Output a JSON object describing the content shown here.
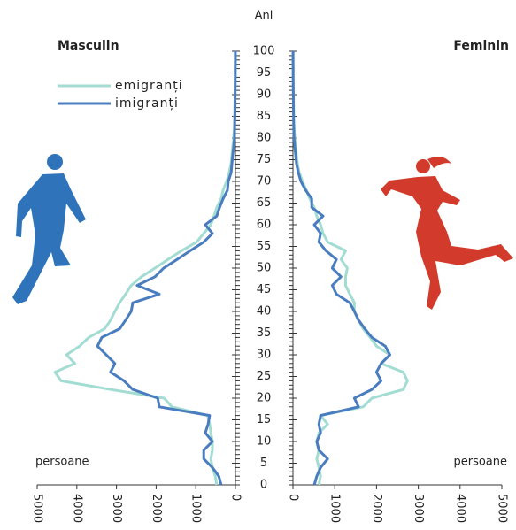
{
  "chart_data": {
    "type": "pyramid",
    "y_label": "Ani",
    "ylim": [
      0,
      100
    ],
    "yticks": [
      0,
      5,
      10,
      15,
      20,
      25,
      30,
      35,
      40,
      45,
      50,
      55,
      60,
      65,
      70,
      75,
      80,
      85,
      90,
      95,
      100
    ],
    "ages": [
      0,
      2,
      4,
      6,
      8,
      10,
      12,
      14,
      16,
      18,
      20,
      22,
      24,
      26,
      28,
      30,
      32,
      34,
      36,
      38,
      40,
      42,
      44,
      46,
      48,
      50,
      52,
      54,
      56,
      58,
      60,
      62,
      64,
      66,
      68,
      70,
      72,
      74,
      76,
      78,
      80,
      82,
      84,
      86,
      88,
      90,
      92,
      94,
      96,
      98,
      100
    ],
    "panels": [
      {
        "title": "Masculin",
        "x_label": "persoane",
        "xlim": [
          0,
          5000
        ],
        "xticks": [
          0,
          1000,
          2000,
          3000,
          4000,
          5000
        ]
      },
      {
        "title": "Feminin",
        "x_label": "persoane",
        "xlim": [
          0,
          5000
        ],
        "xticks": [
          0,
          1000,
          2000,
          3000,
          4000,
          5000
        ]
      }
    ],
    "series": [
      {
        "name": "emigranți",
        "color": "#a3dcd2",
        "values": [
          [
            470,
            510,
            580,
            620,
            580,
            580,
            620,
            650,
            700,
            1600,
            1800,
            3150,
            4400,
            4550,
            4050,
            4260,
            3930,
            3700,
            3300,
            3150,
            3040,
            2920,
            2770,
            2630,
            2370,
            2030,
            1700,
            1360,
            980,
            800,
            620,
            540,
            470,
            360,
            310,
            220,
            160,
            110,
            90,
            70,
            45,
            30,
            25,
            20,
            15,
            10,
            8,
            5,
            4,
            3,
            2
          ],
          [
            620,
            660,
            620,
            570,
            620,
            570,
            620,
            830,
            660,
            1680,
            1890,
            2640,
            2740,
            2640,
            2110,
            2320,
            2000,
            1850,
            1680,
            1570,
            1470,
            1470,
            1360,
            1260,
            1260,
            1300,
            1150,
            1260,
            830,
            720,
            660,
            570,
            510,
            400,
            320,
            230,
            150,
            110,
            85,
            65,
            45,
            30,
            20,
            15,
            12,
            10,
            8,
            6,
            4,
            3,
            2
          ]
        ]
      },
      {
        "name": "imigranți",
        "color": "#4a7dc0",
        "values": [
          [
            360,
            420,
            580,
            800,
            800,
            580,
            760,
            690,
            650,
            1920,
            1960,
            2590,
            2810,
            3150,
            3040,
            3260,
            3480,
            3370,
            2920,
            2770,
            2630,
            2590,
            1920,
            2480,
            2030,
            1810,
            1470,
            1140,
            800,
            580,
            760,
            470,
            400,
            310,
            200,
            180,
            110,
            90,
            70,
            45,
            25,
            20,
            15,
            12,
            10,
            8,
            6,
            5,
            4,
            3,
            2
          ],
          [
            510,
            570,
            660,
            830,
            620,
            570,
            660,
            620,
            660,
            1570,
            1470,
            1890,
            2110,
            2000,
            2110,
            2320,
            2210,
            1890,
            1720,
            1570,
            1470,
            1360,
            1040,
            940,
            1150,
            940,
            1040,
            790,
            620,
            660,
            510,
            720,
            450,
            450,
            300,
            190,
            130,
            85,
            65,
            45,
            25,
            20,
            15,
            12,
            10,
            8,
            6,
            5,
            4,
            3,
            2
          ]
        ]
      }
    ]
  }
}
